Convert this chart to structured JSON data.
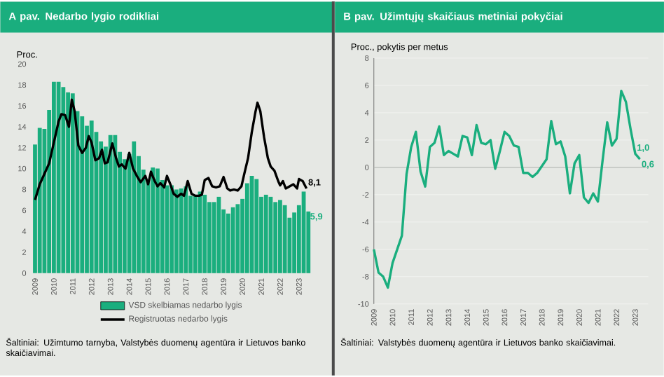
{
  "chart_data": [
    {
      "type": "bar",
      "title": "A pav. Nedarbo lygio rodikliai",
      "ylabel": "Proc.",
      "xlim": [
        2008.8,
        2023.75
      ],
      "ylim": [
        0,
        20
      ],
      "xticks": [
        2009,
        2010,
        2011,
        2012,
        2013,
        2014,
        2015,
        2016,
        2017,
        2018,
        2019,
        2020,
        2021,
        2022,
        2023
      ],
      "yticks": [
        0,
        2,
        4,
        6,
        8,
        10,
        12,
        14,
        16,
        18,
        20
      ],
      "legend": "bottom",
      "series": [
        {
          "name": "VSD skelbiamas nedarbo lygis",
          "type": "bar",
          "color": "#1aae7e",
          "x": [
            2009.0,
            2009.25,
            2009.5,
            2009.75,
            2010.0,
            2010.25,
            2010.5,
            2010.75,
            2011.0,
            2011.25,
            2011.5,
            2011.75,
            2012.0,
            2012.25,
            2012.5,
            2012.75,
            2013.0,
            2013.25,
            2013.5,
            2013.75,
            2014.0,
            2014.25,
            2014.5,
            2014.75,
            2015.0,
            2015.25,
            2015.5,
            2015.75,
            2016.0,
            2016.25,
            2016.5,
            2016.75,
            2017.0,
            2017.25,
            2017.5,
            2017.75,
            2018.0,
            2018.25,
            2018.5,
            2018.75,
            2019.0,
            2019.25,
            2019.5,
            2019.75,
            2020.0,
            2020.25,
            2020.5,
            2020.75,
            2021.0,
            2021.25,
            2021.5,
            2021.75,
            2022.0,
            2022.25,
            2022.5,
            2022.75,
            2023.0,
            2023.25,
            2023.5
          ],
          "values": [
            12.3,
            13.9,
            13.8,
            15.6,
            18.3,
            18.3,
            17.8,
            17.3,
            17.2,
            15.5,
            15.0,
            14.1,
            14.6,
            13.5,
            12.6,
            12.1,
            13.2,
            13.2,
            11.6,
            10.9,
            11.4,
            12.6,
            11.2,
            9.9,
            8.9,
            10.1,
            10.0,
            8.9,
            8.4,
            8.4,
            8.0,
            8.1,
            8.3,
            7.4,
            7.5,
            7.8,
            7.5,
            6.8,
            6.8,
            7.3,
            6.1,
            5.7,
            6.3,
            6.6,
            7.1,
            8.6,
            9.3,
            9.0,
            7.3,
            7.5,
            7.3,
            6.8,
            7.0,
            6.5,
            5.3,
            5.8,
            6.5,
            7.8,
            5.9
          ]
        },
        {
          "name": "Registruotas nedarbo lygis",
          "type": "line",
          "color": "#000000",
          "x": [
            2009.0,
            2009.25,
            2009.5,
            2009.75,
            2010.0,
            2010.25,
            2010.4,
            2010.6,
            2010.8,
            2010.95,
            2011.1,
            2011.3,
            2011.5,
            2011.7,
            2011.85,
            2012.0,
            2012.2,
            2012.4,
            2012.55,
            2012.7,
            2012.85,
            2013.1,
            2013.3,
            2013.45,
            2013.6,
            2013.8,
            2014.0,
            2014.2,
            2014.4,
            2014.6,
            2014.85,
            2015.0,
            2015.15,
            2015.35,
            2015.5,
            2015.65,
            2015.85,
            2016.0,
            2016.2,
            2016.35,
            2016.55,
            2016.75,
            2016.9,
            2017.1,
            2017.3,
            2017.5,
            2017.7,
            2017.85,
            2018.0,
            2018.2,
            2018.4,
            2018.6,
            2018.8,
            2019.0,
            2019.2,
            2019.35,
            2019.55,
            2019.75,
            2019.95,
            2020.1,
            2020.3,
            2020.5,
            2020.7,
            2020.8,
            2020.95,
            2021.15,
            2021.35,
            2021.5,
            2021.7,
            2021.9,
            2022.0,
            2022.15,
            2022.3,
            2022.5,
            2022.7,
            2022.9,
            2023.0,
            2023.2,
            2023.4
          ],
          "values": [
            7.0,
            8.5,
            9.5,
            10.5,
            12.5,
            14.5,
            15.2,
            15.1,
            14.0,
            16.6,
            15.5,
            12.2,
            11.5,
            12.0,
            13.1,
            12.5,
            10.8,
            11.0,
            11.8,
            10.5,
            10.6,
            12.4,
            11.0,
            10.2,
            10.4,
            10.0,
            11.5,
            10.0,
            9.3,
            8.7,
            9.3,
            8.5,
            9.7,
            8.8,
            8.3,
            8.6,
            8.2,
            9.3,
            8.4,
            7.6,
            7.3,
            7.6,
            7.4,
            8.8,
            7.6,
            7.4,
            7.4,
            7.5,
            8.9,
            9.1,
            8.3,
            8.2,
            8.3,
            9.2,
            8.1,
            7.9,
            8.0,
            7.9,
            8.3,
            9.5,
            11.0,
            13.5,
            15.5,
            16.3,
            15.5,
            13.0,
            11.0,
            10.2,
            9.8,
            8.8,
            8.4,
            8.8,
            8.1,
            8.3,
            8.5,
            8.1,
            9.0,
            8.8,
            8.1
          ]
        }
      ],
      "annotations": [
        {
          "text": "8,1",
          "x": 2023.4,
          "y": 8.1
        },
        {
          "text": "5,9",
          "x": 2023.5,
          "y": 5.9
        },
        "Šaltiniai: Užimtumo tarnyba, Valstybės duomenų agentūra ir Lietuvos banko skaičiavimai."
      ]
    },
    {
      "type": "line",
      "title": "B pav. Užimtųjų skaičiaus metiniai pokyčiai",
      "ylabel": "Proc., pokytis per metus",
      "xlim": [
        2009,
        2023.7
      ],
      "ylim": [
        -10,
        8
      ],
      "xticks": [
        2009,
        2010,
        2011,
        2012,
        2013,
        2014,
        2015,
        2016,
        2017,
        2018,
        2019,
        2020,
        2021,
        2022,
        2023
      ],
      "yticks": [
        -10,
        -8,
        -6,
        -4,
        -2,
        0,
        2,
        4,
        6,
        8
      ],
      "grid": "y",
      "ref_lines": [
        {
          "axis": "y",
          "value": 0,
          "color": "#b4b8b4"
        }
      ],
      "series": [
        {
          "color": "#1aae7e",
          "x": [
            2009.0,
            2009.25,
            2009.5,
            2009.75,
            2010.0,
            2010.25,
            2010.5,
            2010.75,
            2011.0,
            2011.25,
            2011.5,
            2011.75,
            2012.0,
            2012.25,
            2012.5,
            2012.75,
            2013.0,
            2013.25,
            2013.5,
            2013.75,
            2014.0,
            2014.25,
            2014.5,
            2014.75,
            2015.0,
            2015.25,
            2015.5,
            2015.75,
            2016.0,
            2016.25,
            2016.5,
            2016.75,
            2017.0,
            2017.25,
            2017.5,
            2017.75,
            2018.0,
            2018.25,
            2018.5,
            2018.75,
            2019.0,
            2019.25,
            2019.5,
            2019.75,
            2020.0,
            2020.25,
            2020.5,
            2020.75,
            2021.0,
            2021.25,
            2021.5,
            2021.75,
            2022.0,
            2022.25,
            2022.5,
            2022.75,
            2023.0,
            2023.25
          ],
          "values": [
            -6.0,
            -7.7,
            -8.0,
            -8.8,
            -7.0,
            -6.0,
            -5.0,
            -0.5,
            1.5,
            2.6,
            -0.3,
            -1.4,
            1.5,
            1.8,
            3.0,
            0.9,
            1.2,
            1.0,
            0.8,
            2.3,
            2.2,
            0.9,
            3.1,
            1.8,
            1.7,
            2.0,
            -0.1,
            1.2,
            2.6,
            2.3,
            1.6,
            1.5,
            -0.4,
            -0.4,
            -0.7,
            -0.4,
            0.1,
            0.6,
            3.4,
            1.7,
            1.9,
            0.8,
            -1.9,
            0.3,
            0.9,
            -2.2,
            -2.6,
            -1.9,
            -2.5,
            0.5,
            3.3,
            1.6,
            2.1,
            5.6,
            4.8,
            2.8,
            1.0,
            0.6
          ]
        }
      ],
      "annotations": [
        {
          "text": "1,0",
          "x": 2023.0,
          "y": 1.0
        },
        {
          "text": "0,6",
          "x": 2023.25,
          "y": 0.6
        },
        "Šaltiniai: Valstybės duomenų agentūra ir Lietuvos banko skaičiavimai."
      ]
    }
  ]
}
